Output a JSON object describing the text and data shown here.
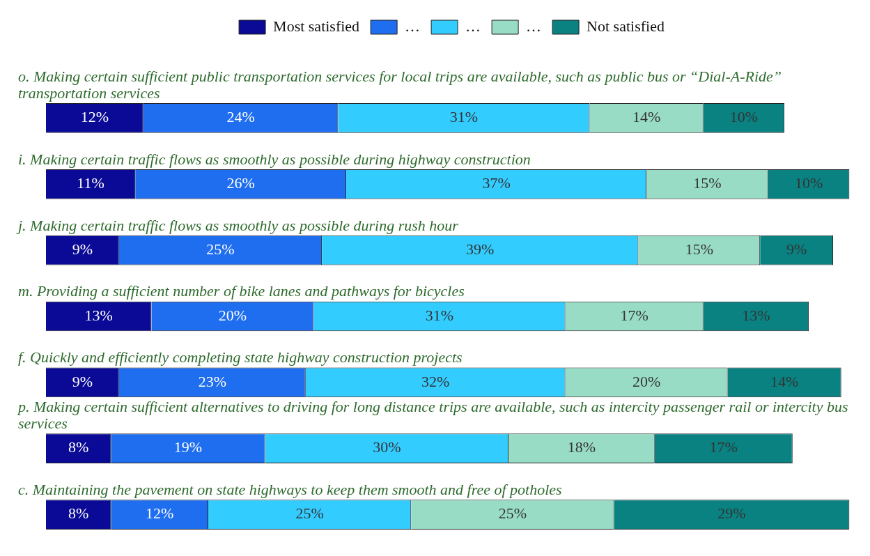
{
  "chart_data": {
    "type": "bar",
    "orientation": "horizontal",
    "stacked": true,
    "legend": "top",
    "categories": [
      "o. Making certain sufficient public transportation services for local trips are available, such as public bus or “Dial-A-Ride” transportation services",
      "i. Making certain traffic flows as smoothly as possible during highway construction",
      "j. Making certain traffic flows as smoothly as possible during rush hour",
      "m. Providing a sufficient number of bike lanes and pathways for bicycles",
      "f. Quickly and efficiently completing state highway construction projects",
      "p. Making certain sufficient alternatives to driving for long distance trips are available, such as intercity passenger rail or intercity bus services",
      "c. Maintaining the pavement on state highways to keep them smooth and free of potholes"
    ],
    "series": [
      {
        "name": "Most satisfied",
        "color": "#0a0a96",
        "values": [
          12,
          11,
          9,
          13,
          9,
          8,
          8
        ],
        "value_labels": [
          "12%",
          "11%",
          "9%",
          "13%",
          "9%",
          "8%",
          "8%"
        ]
      },
      {
        "name": "…",
        "color": "#1f6ef0",
        "values": [
          24,
          26,
          25,
          20,
          23,
          19,
          12
        ],
        "value_labels": [
          "24%",
          "26%",
          "25%",
          "20%",
          "23%",
          "19%",
          "12%"
        ]
      },
      {
        "name": "…",
        "color": "#33ccff",
        "values": [
          31,
          37,
          39,
          31,
          32,
          30,
          25
        ],
        "value_labels": [
          "31%",
          "37%",
          "39%",
          "31%",
          "32%",
          "30%",
          "25%"
        ]
      },
      {
        "name": "…",
        "color": "#99dcc6",
        "values": [
          14,
          15,
          15,
          17,
          20,
          18,
          25
        ],
        "value_labels": [
          "14%",
          "15%",
          "15%",
          "17%",
          "20%",
          "18%",
          "25%"
        ]
      },
      {
        "name": "Not satisfied",
        "color": "#0a8282",
        "values": [
          10,
          10,
          9,
          13,
          14,
          17,
          29
        ],
        "value_labels": [
          "10%",
          "10%",
          "9%",
          "13%",
          "14%",
          "17%",
          "29%"
        ]
      }
    ]
  }
}
